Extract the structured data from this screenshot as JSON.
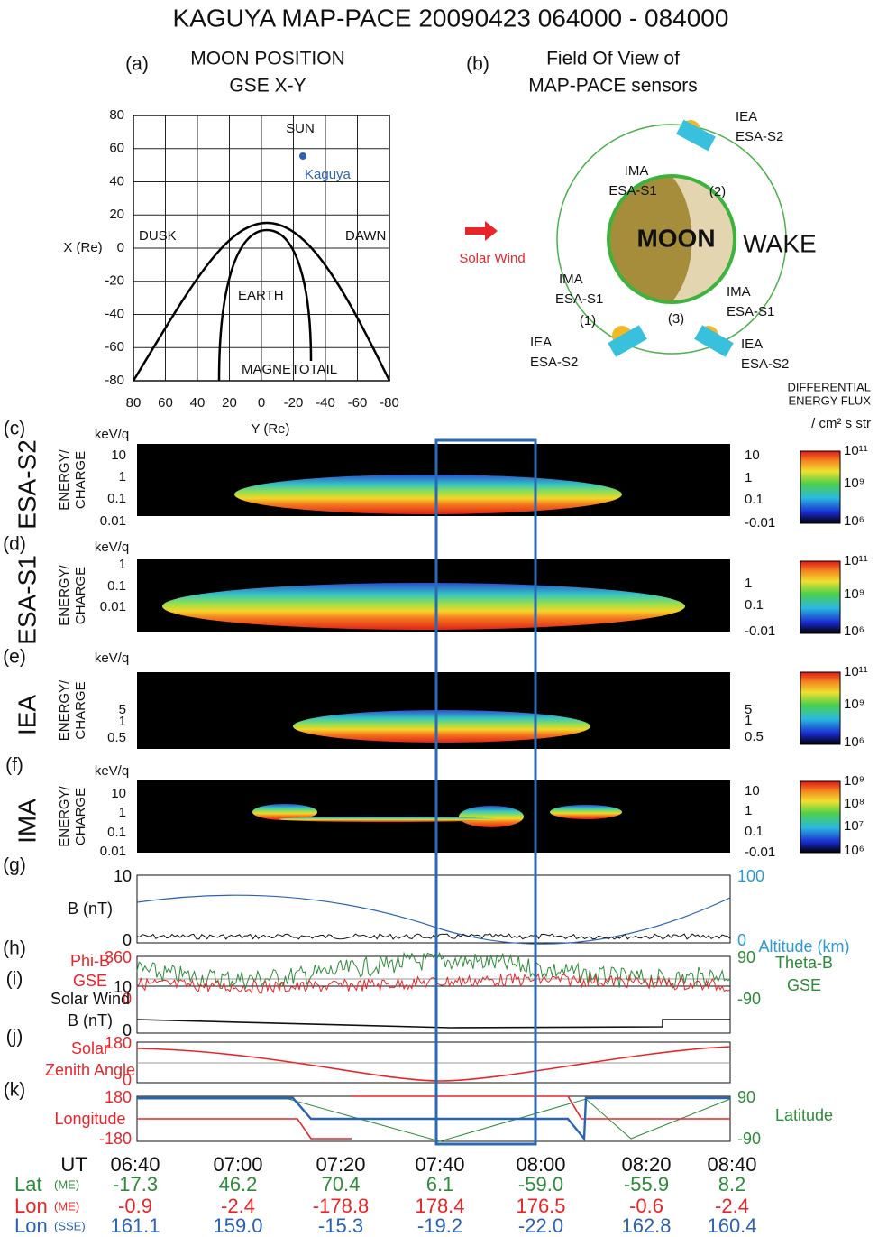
{
  "title": "KAGUYA MAP-PACE  20090423   064000 - 084000",
  "panel_a": {
    "label": "(a)",
    "title": [
      "MOON POSITION",
      "GSE X-Y"
    ],
    "xticks": [
      "80",
      "60",
      "40",
      "20",
      "0",
      "-20",
      "-40",
      "-60",
      "-80"
    ],
    "yticks": [
      "80",
      "60",
      "40",
      "20",
      "0",
      "-20",
      "-40",
      "-60",
      "-80"
    ],
    "xlabel": "Y (Re)",
    "ylabel": "X (Re)",
    "sun": "SUN",
    "kaguya": "Kaguya",
    "dusk": "DUSK",
    "dawn": "DAWN",
    "earth": "EARTH",
    "magnetotail": "MAGNETOTAIL"
  },
  "panel_b": {
    "label": "(b)",
    "title": [
      "Field Of View of",
      "MAP-PACE sensors"
    ],
    "moon": "MOON",
    "wake": "WAKE",
    "solar_wind": "Solar Wind",
    "sensors": [
      {
        "lines": [
          "IEA",
          "ESA-S2"
        ]
      },
      {
        "lines": [
          "IMA",
          "ESA-S1",
          "(2)"
        ]
      },
      {
        "lines": [
          "IMA",
          "ESA-S1"
        ]
      },
      {
        "lines": [
          "(1)"
        ]
      },
      {
        "lines": [
          "IEA",
          "ESA-S2"
        ]
      },
      {
        "lines": [
          "IMA",
          "ESA-S1"
        ]
      },
      {
        "lines": [
          "(3)"
        ]
      },
      {
        "lines": [
          "IEA",
          "ESA-S2"
        ]
      }
    ]
  },
  "colorbar_title": [
    "DIFFERENTIAL",
    "ENERGY FLUX",
    "/ cm² s str"
  ],
  "spectra": [
    {
      "label": "(c)",
      "sensor": "ESA-S2",
      "ylabel": [
        "ENERGY/",
        "CHARGE"
      ],
      "unit": "keV/q",
      "left_ticks": [
        "10",
        "1",
        "0.1",
        "0.01"
      ],
      "right_ticks": [
        "10",
        "1",
        "0.1",
        "-0.01"
      ],
      "colorbar_ticks": [
        "10¹¹",
        "10⁹",
        "10⁶"
      ]
    },
    {
      "label": "(d)",
      "sensor": "ESA-S1",
      "ylabel": [
        "ENERGY/",
        "CHARGE"
      ],
      "unit": "keV/q",
      "left_ticks": [
        "1",
        "0.1",
        "0.01"
      ],
      "right_ticks": [
        "1",
        "0.1",
        "-0.01"
      ],
      "colorbar_ticks": [
        "10¹¹",
        "10⁹",
        "10⁶"
      ]
    },
    {
      "label": "(e)",
      "sensor": "IEA",
      "ylabel": [
        "ENERGY/",
        "CHARGE"
      ],
      "unit": "keV/q",
      "left_ticks": [
        "5",
        "1",
        "0.5"
      ],
      "right_ticks": [
        "5",
        "1",
        "0.5"
      ],
      "colorbar_ticks": [
        "10¹¹",
        "10⁹",
        "10⁶"
      ]
    },
    {
      "label": "(f)",
      "sensor": "IMA",
      "ylabel": [
        "ENERGY/",
        "CHARGE"
      ],
      "unit": "keV/q",
      "left_ticks": [
        "10",
        "1",
        "0.1",
        "0.01"
      ],
      "right_ticks": [
        "10",
        "1",
        "0.1",
        "-0.01"
      ],
      "colorbar_ticks": [
        "10⁹",
        "10⁸",
        "10⁷",
        "10⁶"
      ]
    }
  ],
  "lines": [
    {
      "label": "(g)",
      "left_title": [
        "B (nT)"
      ],
      "left_ticks": [
        "10",
        "0"
      ],
      "right_ticks": [
        "100",
        "0"
      ],
      "right_title": [
        "Altitude (km)"
      ]
    },
    {
      "label": "(h)",
      "left_title": [
        "Phi-B",
        "GSE"
      ],
      "left_ticks": [
        "360",
        "0"
      ],
      "right_ticks": [
        "90",
        "-90"
      ],
      "right_title": [
        "Theta-B",
        "GSE"
      ]
    },
    {
      "label": "(i)",
      "left_title": [
        "Solar Wind",
        "B (nT)"
      ],
      "left_ticks": [
        "10",
        "0"
      ],
      "right_ticks": [],
      "right_title": []
    },
    {
      "label": "(j)",
      "left_title": [
        "Solar",
        "Zenith Angle"
      ],
      "left_ticks": [
        "180",
        "0"
      ],
      "right_ticks": [],
      "right_title": []
    },
    {
      "label": "(k)",
      "left_title": [
        "Longitude"
      ],
      "left_ticks": [
        "180",
        "-180"
      ],
      "right_ticks": [
        "90",
        "-90"
      ],
      "right_title": [
        "Latitude"
      ]
    }
  ],
  "ut_table": {
    "rows": [
      {
        "label": "UT",
        "sub": "",
        "values": [
          "06:40",
          "07:00",
          "07:20",
          "07:40",
          "08:00",
          "08:20",
          "08:40"
        ]
      },
      {
        "label": "Lat",
        "sub": "(ME)",
        "values": [
          "-17.3",
          "46.2",
          "70.4",
          "6.1",
          "-59.0",
          "-55.9",
          "8.2"
        ]
      },
      {
        "label": "Lon",
        "sub": "(ME)",
        "values": [
          "-0.9",
          "-2.4",
          "-178.8",
          "178.4",
          "176.5",
          "-0.6",
          "-2.4"
        ]
      },
      {
        "label": "Lon",
        "sub": "(SSE)",
        "values": [
          "161.1",
          "159.0",
          "-15.3",
          "-19.2",
          "-22.0",
          "162.8",
          "160.4"
        ]
      }
    ]
  }
}
